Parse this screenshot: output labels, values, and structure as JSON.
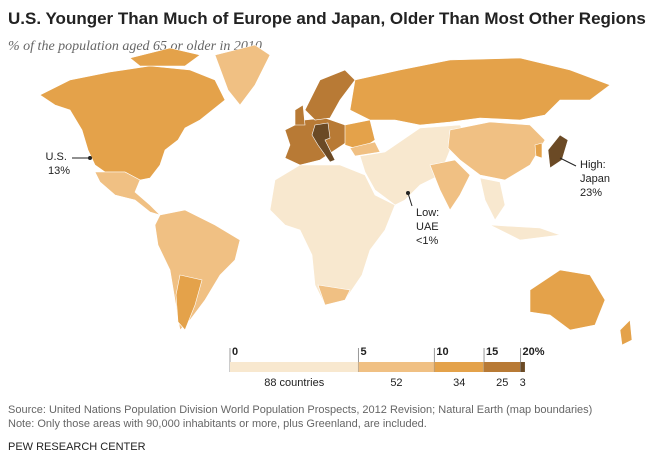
{
  "title": "U.S. Younger Than Much of Europe and Japan, Older Than Most Other Regions",
  "subtitle": "% of the population aged 65 or older in 2010",
  "annotations": [
    {
      "lines": [
        "U.S.",
        "13%"
      ]
    },
    {
      "lines": [
        "High:",
        "Japan",
        "23%"
      ]
    },
    {
      "lines": [
        "Low:",
        "UAE",
        "<1%"
      ]
    }
  ],
  "legend": {
    "breaks": [
      0,
      5,
      10,
      15,
      {
        "value": 20,
        "label": "20%"
      }
    ],
    "counts": [
      {
        "value": 88,
        "label": "88 countries"
      },
      52,
      34,
      25,
      3
    ],
    "colors": [
      "#f8e8cf",
      "#f0c083",
      "#e4a24a",
      "#b87a35",
      "#6b4a25"
    ]
  },
  "source": "Source: United Nations Population Division World Population Prospects, 2012 Revision; Natural Earth (map boundaries)",
  "note": "Note: Only those areas with 90,000 inhabitants or more, plus Greenland, are included.",
  "organization": "PEW RESEARCH CENTER"
}
